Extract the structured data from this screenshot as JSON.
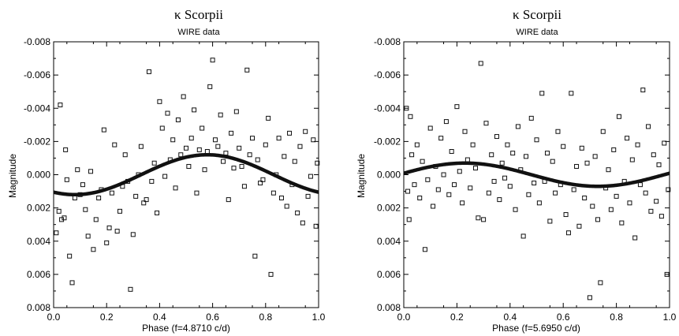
{
  "chart_data": [
    {
      "type": "scatter",
      "title": "κ Scorpii",
      "subtitle": "WIRE data",
      "xlabel": "Phase  (f=4.8710 c/d)",
      "ylabel": "Magnitude",
      "xlim": [
        0.0,
        1.0
      ],
      "ylim": [
        0.008,
        -0.008
      ],
      "x_ticks": [
        "0.0",
        "0.2",
        "0.4",
        "0.6",
        "0.8",
        "1.0"
      ],
      "y_ticks": [
        "-0.008",
        "-0.006",
        "-0.004",
        "-0.002",
        "0.000",
        "0.002",
        "0.004",
        "0.006",
        "0.008"
      ],
      "x_tick_values": [
        0.0,
        0.2,
        0.4,
        0.6,
        0.8,
        1.0
      ],
      "y_tick_values": [
        -0.008,
        -0.006,
        -0.004,
        -0.002,
        0.0,
        0.002,
        0.004,
        0.006,
        0.008
      ],
      "grid": false,
      "fit": {
        "name": "sinusoid fit",
        "mean": 0.0,
        "amplitude": 0.0012,
        "peak_phase": 0.58
      },
      "series": [
        {
          "name": "observations",
          "points": [
            [
              0.01,
              0.0035
            ],
            [
              0.02,
              0.0022
            ],
            [
              0.025,
              -0.0042
            ],
            [
              0.03,
              0.0027
            ],
            [
              0.04,
              0.0026
            ],
            [
              0.045,
              -0.0015
            ],
            [
              0.05,
              0.0003
            ],
            [
              0.06,
              0.0049
            ],
            [
              0.07,
              0.0065
            ],
            [
              0.08,
              0.0014
            ],
            [
              0.09,
              -0.0003
            ],
            [
              0.1,
              0.0012
            ],
            [
              0.11,
              0.0006
            ],
            [
              0.12,
              0.0021
            ],
            [
              0.13,
              0.0037
            ],
            [
              0.14,
              -0.0002
            ],
            [
              0.15,
              0.0045
            ],
            [
              0.16,
              0.0027
            ],
            [
              0.17,
              0.0014
            ],
            [
              0.18,
              0.0009
            ],
            [
              0.19,
              -0.0027
            ],
            [
              0.2,
              0.0041
            ],
            [
              0.21,
              0.0032
            ],
            [
              0.22,
              0.0011
            ],
            [
              0.23,
              -0.0018
            ],
            [
              0.24,
              0.0034
            ],
            [
              0.25,
              0.0022
            ],
            [
              0.26,
              0.0007
            ],
            [
              0.27,
              -0.0012
            ],
            [
              0.28,
              0.0004
            ],
            [
              0.29,
              0.0069
            ],
            [
              0.3,
              0.0036
            ],
            [
              0.31,
              0.0013
            ],
            [
              0.32,
              0.0
            ],
            [
              0.33,
              -0.0017
            ],
            [
              0.34,
              0.0017
            ],
            [
              0.35,
              0.0015
            ],
            [
              0.36,
              -0.0062
            ],
            [
              0.37,
              0.0004
            ],
            [
              0.38,
              -0.0007
            ],
            [
              0.39,
              0.0023
            ],
            [
              0.4,
              -0.0044
            ],
            [
              0.41,
              -0.0028
            ],
            [
              0.42,
              0.0001
            ],
            [
              0.43,
              -0.0037
            ],
            [
              0.44,
              -0.0009
            ],
            [
              0.45,
              -0.0021
            ],
            [
              0.46,
              0.0008
            ],
            [
              0.47,
              -0.0033
            ],
            [
              0.48,
              -0.0012
            ],
            [
              0.49,
              -0.0047
            ],
            [
              0.5,
              -0.0016
            ],
            [
              0.51,
              -0.0005
            ],
            [
              0.52,
              -0.0022
            ],
            [
              0.53,
              -0.0039
            ],
            [
              0.54,
              0.0011
            ],
            [
              0.55,
              -0.0015
            ],
            [
              0.56,
              -0.0028
            ],
            [
              0.57,
              -0.0003
            ],
            [
              0.58,
              -0.0014
            ],
            [
              0.59,
              -0.0053
            ],
            [
              0.6,
              -0.0069
            ],
            [
              0.61,
              -0.0021
            ],
            [
              0.62,
              -0.0017
            ],
            [
              0.63,
              -0.0036
            ],
            [
              0.64,
              -0.0008
            ],
            [
              0.65,
              -0.0013
            ],
            [
              0.66,
              0.0015
            ],
            [
              0.67,
              -0.0025
            ],
            [
              0.68,
              -0.0004
            ],
            [
              0.69,
              -0.0038
            ],
            [
              0.7,
              -0.0016
            ],
            [
              0.71,
              -0.0005
            ],
            [
              0.72,
              0.0007
            ],
            [
              0.73,
              -0.0063
            ],
            [
              0.74,
              -0.0012
            ],
            [
              0.75,
              -0.0022
            ],
            [
              0.76,
              0.0049
            ],
            [
              0.77,
              -0.0009
            ],
            [
              0.78,
              0.0005
            ],
            [
              0.79,
              0.0003
            ],
            [
              0.8,
              -0.0018
            ],
            [
              0.81,
              -0.0034
            ],
            [
              0.82,
              0.006
            ],
            [
              0.83,
              0.0011
            ],
            [
              0.84,
              0.0
            ],
            [
              0.85,
              -0.0022
            ],
            [
              0.86,
              0.0014
            ],
            [
              0.87,
              -0.0011
            ],
            [
              0.88,
              0.0019
            ],
            [
              0.89,
              -0.0025
            ],
            [
              0.9,
              0.0006
            ],
            [
              0.91,
              -0.0008
            ],
            [
              0.92,
              0.0023
            ],
            [
              0.93,
              -0.0017
            ],
            [
              0.94,
              0.0029
            ],
            [
              0.95,
              -0.0026
            ],
            [
              0.96,
              0.0013
            ],
            [
              0.97,
              0.0001
            ],
            [
              0.98,
              -0.0021
            ],
            [
              0.99,
              0.0031
            ],
            [
              0.995,
              -0.0007
            ]
          ]
        }
      ]
    },
    {
      "type": "scatter",
      "title": "κ Scorpii",
      "subtitle": "WIRE data",
      "xlabel": "Phase  (f=5.6950 c/d)",
      "ylabel": "Magnitude",
      "xlim": [
        0.0,
        1.0
      ],
      "ylim": [
        0.008,
        -0.008
      ],
      "x_ticks": [
        "0.0",
        "0.2",
        "0.4",
        "0.6",
        "0.8",
        "1.0"
      ],
      "y_ticks": [
        "-0.008",
        "-0.006",
        "-0.004",
        "-0.002",
        "0.000",
        "0.002",
        "0.004",
        "0.006",
        "0.008"
      ],
      "x_tick_values": [
        0.0,
        0.2,
        0.4,
        0.6,
        0.8,
        1.0
      ],
      "y_tick_values": [
        -0.008,
        -0.006,
        -0.004,
        -0.002,
        0.0,
        0.002,
        0.004,
        0.006,
        0.008
      ],
      "grid": false,
      "fit": {
        "name": "sinusoid fit",
        "mean": 0.0,
        "amplitude": 0.0007,
        "peak_phase": 0.23
      },
      "series": [
        {
          "name": "observations",
          "points": [
            [
              0.01,
              -0.004
            ],
            [
              0.015,
              0.001
            ],
            [
              0.02,
              0.0027
            ],
            [
              0.025,
              -0.0035
            ],
            [
              0.03,
              -0.0012
            ],
            [
              0.04,
              0.0006
            ],
            [
              0.05,
              -0.0018
            ],
            [
              0.06,
              0.0014
            ],
            [
              0.07,
              -0.0008
            ],
            [
              0.08,
              0.0045
            ],
            [
              0.09,
              0.0003
            ],
            [
              0.1,
              -0.0028
            ],
            [
              0.11,
              0.0019
            ],
            [
              0.12,
              -0.0005
            ],
            [
              0.13,
              0.0009
            ],
            [
              0.14,
              -0.0022
            ],
            [
              0.15,
              0.0
            ],
            [
              0.16,
              -0.0032
            ],
            [
              0.17,
              0.0012
            ],
            [
              0.18,
              -0.0014
            ],
            [
              0.19,
              0.0006
            ],
            [
              0.2,
              -0.0041
            ],
            [
              0.21,
              -0.0002
            ],
            [
              0.22,
              0.0017
            ],
            [
              0.23,
              -0.0026
            ],
            [
              0.24,
              -0.0009
            ],
            [
              0.25,
              0.0008
            ],
            [
              0.26,
              -0.0018
            ],
            [
              0.27,
              -0.0004
            ],
            [
              0.28,
              0.0026
            ],
            [
              0.29,
              -0.0067
            ],
            [
              0.3,
              0.0027
            ],
            [
              0.31,
              -0.0031
            ],
            [
              0.32,
              0.0011
            ],
            [
              0.33,
              -0.0012
            ],
            [
              0.34,
              0.0004
            ],
            [
              0.35,
              -0.0023
            ],
            [
              0.36,
              0.0015
            ],
            [
              0.37,
              -0.0007
            ],
            [
              0.38,
              0.0002
            ],
            [
              0.39,
              -0.0018
            ],
            [
              0.4,
              0.0007
            ],
            [
              0.41,
              -0.0013
            ],
            [
              0.42,
              0.0021
            ],
            [
              0.43,
              -0.0029
            ],
            [
              0.44,
              -0.0003
            ],
            [
              0.45,
              0.0037
            ],
            [
              0.46,
              -0.0011
            ],
            [
              0.47,
              0.0012
            ],
            [
              0.48,
              -0.0034
            ],
            [
              0.49,
              0.0005
            ],
            [
              0.5,
              -0.0021
            ],
            [
              0.51,
              0.0017
            ],
            [
              0.52,
              -0.0049
            ],
            [
              0.53,
              0.0004
            ],
            [
              0.54,
              -0.0013
            ],
            [
              0.55,
              0.0028
            ],
            [
              0.56,
              -0.0008
            ],
            [
              0.57,
              0.0011
            ],
            [
              0.58,
              -0.0026
            ],
            [
              0.59,
              0.0006
            ],
            [
              0.6,
              -0.0017
            ],
            [
              0.61,
              0.0024
            ],
            [
              0.62,
              0.0035
            ],
            [
              0.63,
              -0.0049
            ],
            [
              0.64,
              0.0009
            ],
            [
              0.65,
              -0.0005
            ],
            [
              0.66,
              0.0031
            ],
            [
              0.67,
              -0.0016
            ],
            [
              0.68,
              0.0014
            ],
            [
              0.69,
              -0.0007
            ],
            [
              0.7,
              0.0074
            ],
            [
              0.71,
              0.0019
            ],
            [
              0.72,
              -0.0011
            ],
            [
              0.73,
              0.0027
            ],
            [
              0.74,
              0.0065
            ],
            [
              0.75,
              -0.0026
            ],
            [
              0.76,
              0.0008
            ],
            [
              0.77,
              -0.0003
            ],
            [
              0.78,
              0.0021
            ],
            [
              0.79,
              -0.0015
            ],
            [
              0.8,
              0.0013
            ],
            [
              0.81,
              -0.0035
            ],
            [
              0.82,
              0.0029
            ],
            [
              0.83,
              0.0004
            ],
            [
              0.84,
              -0.0022
            ],
            [
              0.85,
              0.0017
            ],
            [
              0.86,
              -0.0009
            ],
            [
              0.87,
              0.0038
            ],
            [
              0.88,
              -0.0018
            ],
            [
              0.89,
              0.0006
            ],
            [
              0.9,
              -0.0051
            ],
            [
              0.91,
              0.0011
            ],
            [
              0.92,
              -0.0029
            ],
            [
              0.93,
              0.0022
            ],
            [
              0.94,
              -0.0012
            ],
            [
              0.95,
              0.0016
            ],
            [
              0.96,
              -0.0006
            ],
            [
              0.97,
              0.0025
            ],
            [
              0.98,
              -0.0019
            ],
            [
              0.99,
              0.006
            ],
            [
              0.995,
              0.0009
            ]
          ]
        }
      ]
    }
  ]
}
